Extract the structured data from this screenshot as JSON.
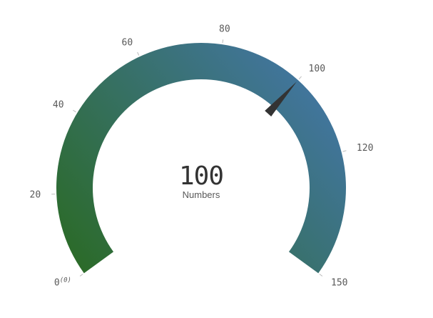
{
  "chart_data": {
    "type": "gauge",
    "min": 0,
    "max": 150,
    "value": 100,
    "value_text": "100",
    "label": "Numbers",
    "min_annotation": "(0)",
    "ticks": [
      {
        "value": 0,
        "label": "0"
      },
      {
        "value": 20,
        "label": "20"
      },
      {
        "value": 40,
        "label": "40"
      },
      {
        "value": 60,
        "label": "60"
      },
      {
        "value": 80,
        "label": "80"
      },
      {
        "value": 100,
        "label": "100"
      },
      {
        "value": 120,
        "label": "120"
      },
      {
        "value": 150,
        "label": "150"
      }
    ],
    "colors": {
      "gradient_start": "#2a6a22",
      "gradient_end": "#4577b0",
      "needle": "#333333"
    }
  }
}
